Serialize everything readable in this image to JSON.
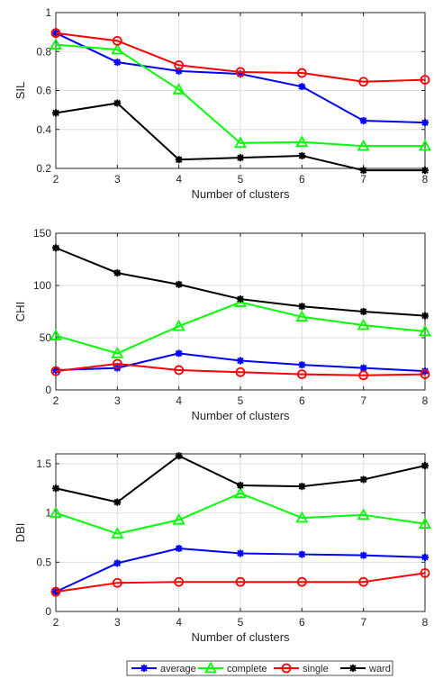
{
  "chart_data": [
    {
      "type": "line",
      "xlabel": "Number of clusters",
      "ylabel": "SIL",
      "x": [
        2,
        3,
        4,
        5,
        6,
        7,
        8
      ],
      "xlim": [
        2,
        8
      ],
      "ylim": [
        0.2,
        1
      ],
      "yticks": [
        0.2,
        0.4,
        0.6,
        0.8,
        1
      ],
      "ytick_labels": [
        "0.2",
        "0.4",
        "0.6",
        "0.8",
        "1"
      ],
      "grid": true,
      "series": [
        {
          "name": "average",
          "color": "#0000ff",
          "marker": "asterisk",
          "values": [
            0.895,
            0.745,
            0.7,
            0.685,
            0.62,
            0.445,
            0.435
          ]
        },
        {
          "name": "complete",
          "color": "#00ff00",
          "marker": "triangle",
          "values": [
            0.835,
            0.81,
            0.605,
            0.33,
            0.335,
            0.315,
            0.315
          ]
        },
        {
          "name": "single",
          "color": "#ff0000",
          "marker": "circle",
          "values": [
            0.895,
            0.855,
            0.73,
            0.695,
            0.69,
            0.645,
            0.655
          ]
        },
        {
          "name": "ward",
          "color": "#000000",
          "marker": "asterisk",
          "values": [
            0.485,
            0.535,
            0.245,
            0.255,
            0.265,
            0.19,
            0.19
          ]
        }
      ]
    },
    {
      "type": "line",
      "xlabel": "Number of clusters",
      "ylabel": "CHI",
      "x": [
        2,
        3,
        4,
        5,
        6,
        7,
        8
      ],
      "xlim": [
        2,
        8
      ],
      "ylim": [
        0,
        150
      ],
      "yticks": [
        0,
        50,
        100,
        150
      ],
      "ytick_labels": [
        "0",
        "50",
        "100",
        "150"
      ],
      "grid": true,
      "series": [
        {
          "name": "average",
          "color": "#0000ff",
          "marker": "asterisk",
          "values": [
            19,
            21,
            35,
            28,
            24,
            21,
            18
          ]
        },
        {
          "name": "complete",
          "color": "#00ff00",
          "marker": "triangle",
          "values": [
            52,
            35,
            61,
            84,
            70,
            62,
            56
          ]
        },
        {
          "name": "single",
          "color": "#ff0000",
          "marker": "circle",
          "values": [
            18,
            25,
            19,
            17,
            15,
            14,
            15
          ]
        },
        {
          "name": "ward",
          "color": "#000000",
          "marker": "asterisk",
          "values": [
            136,
            112,
            101,
            87,
            80,
            75,
            71
          ]
        }
      ]
    },
    {
      "type": "line",
      "xlabel": "Number of clusters",
      "ylabel": "DBI",
      "x": [
        2,
        3,
        4,
        5,
        6,
        7,
        8
      ],
      "xlim": [
        2,
        8
      ],
      "ylim": [
        0,
        1.6
      ],
      "yticks": [
        0,
        0.5,
        1,
        1.5
      ],
      "ytick_labels": [
        "0",
        "0.5",
        "1",
        "1.5"
      ],
      "grid": true,
      "series": [
        {
          "name": "average",
          "color": "#0000ff",
          "marker": "asterisk",
          "values": [
            0.2,
            0.49,
            0.64,
            0.59,
            0.58,
            0.57,
            0.55
          ]
        },
        {
          "name": "complete",
          "color": "#00ff00",
          "marker": "triangle",
          "values": [
            1.0,
            0.79,
            0.93,
            1.2,
            0.95,
            0.98,
            0.89
          ]
        },
        {
          "name": "single",
          "color": "#ff0000",
          "marker": "circle",
          "values": [
            0.2,
            0.29,
            0.3,
            0.3,
            0.3,
            0.3,
            0.39
          ]
        },
        {
          "name": "ward",
          "color": "#000000",
          "marker": "asterisk",
          "values": [
            1.25,
            1.11,
            1.58,
            1.28,
            1.27,
            1.34,
            1.48
          ]
        }
      ]
    }
  ],
  "legend": {
    "placement": "bottom-center",
    "entries": [
      {
        "label": "average",
        "color": "#0000ff",
        "marker": "asterisk"
      },
      {
        "label": "complete",
        "color": "#00ff00",
        "marker": "triangle"
      },
      {
        "label": "single",
        "color": "#ff0000",
        "marker": "circle"
      },
      {
        "label": "ward",
        "color": "#000000",
        "marker": "asterisk"
      }
    ]
  }
}
